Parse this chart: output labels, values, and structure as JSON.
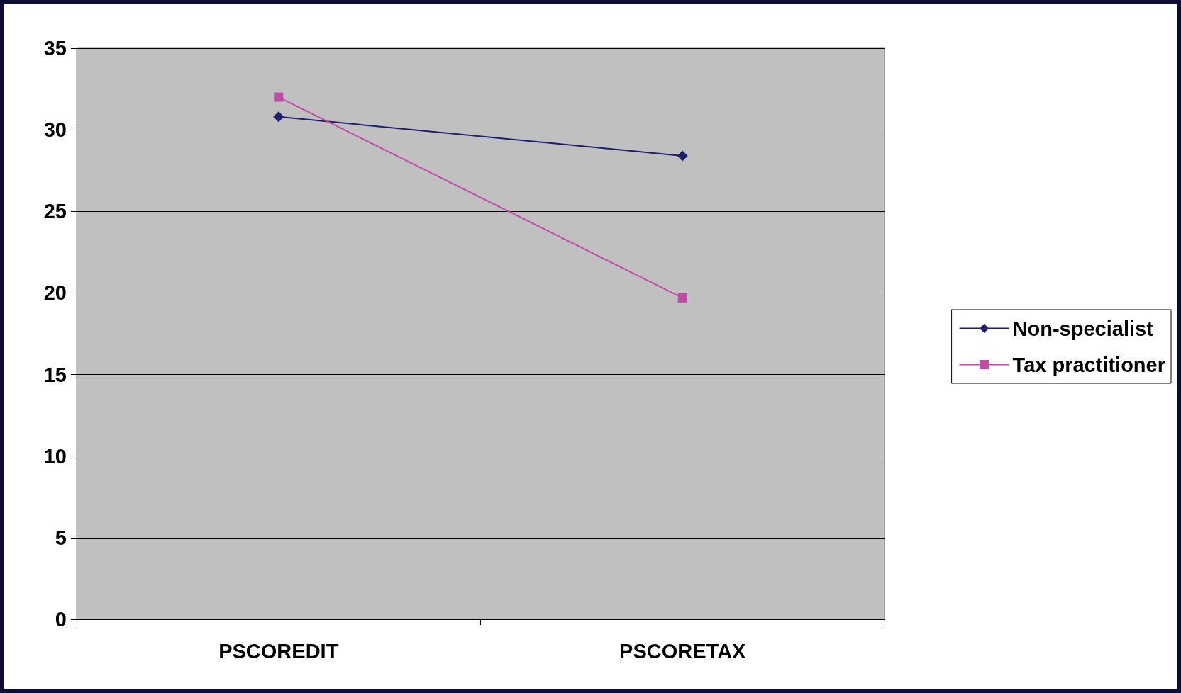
{
  "chart_data": {
    "type": "line",
    "categories": [
      "PSCOREDIT",
      "PSCORETAX"
    ],
    "series": [
      {
        "name": "Non-specialist",
        "color": "#1f1f6e",
        "marker": "diamond",
        "values": [
          30.8,
          28.4
        ]
      },
      {
        "name": "Tax practitioner",
        "color": "#c04ca8",
        "marker": "square",
        "values": [
          32.0,
          19.7
        ]
      }
    ],
    "ylim": [
      0,
      35
    ],
    "yticks": [
      0,
      5,
      10,
      15,
      20,
      25,
      30,
      35
    ],
    "grid": "y",
    "legend": "right",
    "line_style": "solid"
  }
}
